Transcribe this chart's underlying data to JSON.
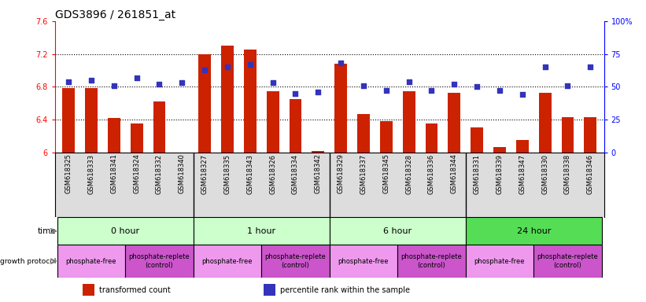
{
  "title": "GDS3896 / 261851_at",
  "samples": [
    "GSM618325",
    "GSM618333",
    "GSM618341",
    "GSM618324",
    "GSM618332",
    "GSM618340",
    "GSM618327",
    "GSM618335",
    "GSM618343",
    "GSM618326",
    "GSM618334",
    "GSM618342",
    "GSM618329",
    "GSM618337",
    "GSM618345",
    "GSM618328",
    "GSM618336",
    "GSM618344",
    "GSM618331",
    "GSM618339",
    "GSM618347",
    "GSM618330",
    "GSM618338",
    "GSM618346"
  ],
  "transformed_count": [
    6.78,
    6.78,
    6.42,
    6.35,
    6.62,
    6.0,
    7.2,
    7.3,
    7.25,
    6.75,
    6.65,
    6.02,
    7.08,
    6.47,
    6.38,
    6.75,
    6.35,
    6.73,
    6.31,
    6.07,
    6.15,
    6.73,
    6.43,
    6.43
  ],
  "percentile_rank": [
    54,
    55,
    51,
    57,
    52,
    53,
    63,
    65,
    67,
    53,
    45,
    46,
    68,
    51,
    47,
    54,
    47,
    52,
    50,
    47,
    44,
    65,
    51,
    65
  ],
  "ylim_left": [
    6.0,
    7.6
  ],
  "ylim_right": [
    0,
    100
  ],
  "yticks_left": [
    6.0,
    6.4,
    6.8,
    7.2,
    7.6
  ],
  "ytick_labels_left": [
    "6",
    "6.4",
    "6.8",
    "7.2",
    "7.6"
  ],
  "yticks_right": [
    0,
    25,
    50,
    75,
    100
  ],
  "ytick_labels_right": [
    "0",
    "25",
    "50",
    "75",
    "100%"
  ],
  "hlines": [
    6.4,
    6.8,
    7.2
  ],
  "bar_color": "#cc2200",
  "dot_color": "#3333bb",
  "bar_width": 0.55,
  "time_groups": [
    {
      "label": "0 hour",
      "start": 0,
      "end": 6
    },
    {
      "label": "1 hour",
      "start": 6,
      "end": 12
    },
    {
      "label": "6 hour",
      "start": 12,
      "end": 18
    },
    {
      "label": "24 hour",
      "start": 18,
      "end": 24
    }
  ],
  "time_colors": [
    "#ccffcc",
    "#ccffcc",
    "#ccffcc",
    "#55dd55"
  ],
  "protocol_groups": [
    {
      "label": "phosphate-free",
      "start": 0,
      "end": 3
    },
    {
      "label": "phosphate-replete\n(control)",
      "start": 3,
      "end": 6
    },
    {
      "label": "phosphate-free",
      "start": 6,
      "end": 9
    },
    {
      "label": "phosphate-replete\n(control)",
      "start": 9,
      "end": 12
    },
    {
      "label": "phosphate-free",
      "start": 12,
      "end": 15
    },
    {
      "label": "phosphate-replete\n(control)",
      "start": 15,
      "end": 18
    },
    {
      "label": "phosphate-free",
      "start": 18,
      "end": 21
    },
    {
      "label": "phosphate-replete\n(control)",
      "start": 21,
      "end": 24
    }
  ],
  "protocol_colors": [
    "#ee99ee",
    "#cc55cc",
    "#ee99ee",
    "#cc55cc",
    "#ee99ee",
    "#cc55cc",
    "#ee99ee",
    "#cc55cc"
  ],
  "legend_items": [
    {
      "label": "transformed count",
      "color": "#cc2200"
    },
    {
      "label": "percentile rank within the sample",
      "color": "#3333bb"
    }
  ],
  "fig_width": 8.21,
  "fig_height": 3.84,
  "dpi": 100,
  "background_color": "#ffffff",
  "xlab_bg": "#dddddd",
  "title_fontsize": 10,
  "tick_fontsize": 7,
  "sample_fontsize": 6,
  "row_fontsize": 8,
  "prot_fontsize": 6
}
